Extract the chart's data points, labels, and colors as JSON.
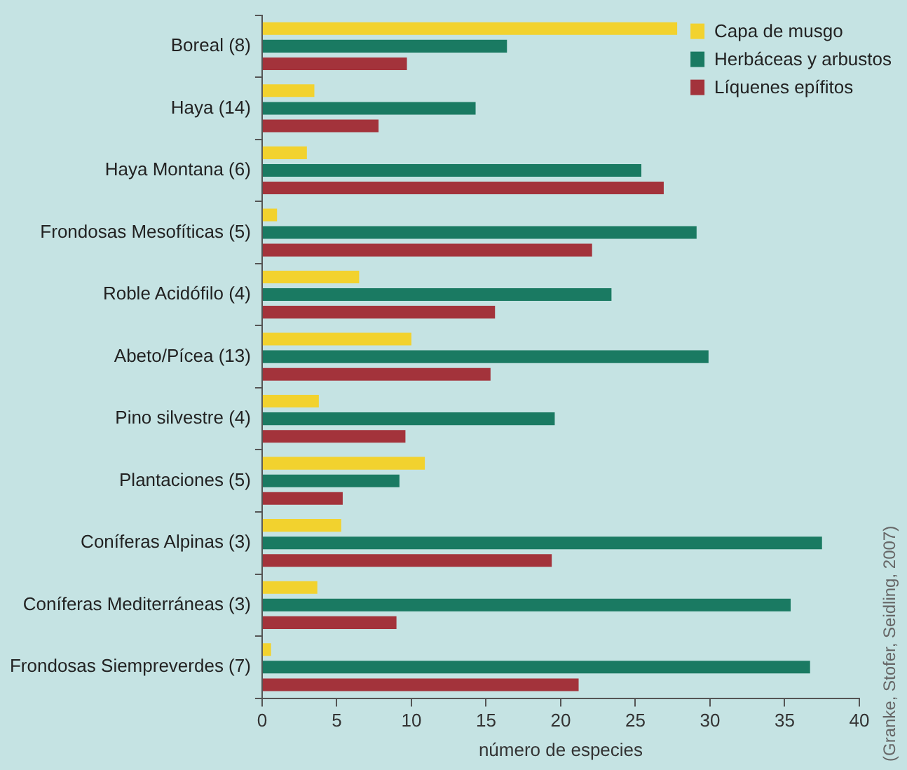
{
  "chart_data": {
    "type": "bar",
    "orientation": "horizontal",
    "xlabel": "número de especies",
    "categories": [
      "Boreal (8)",
      "Haya (14)",
      "Haya Montana (6)",
      "Frondosas Mesofíticas (5)",
      "Roble Acidófilo (4)",
      "Abeto/Pícea (13)",
      "Pino silvestre (4)",
      "Plantaciones (5)",
      "Coníferas Alpinas (3)",
      "Coníferas Mediterráneas (3)",
      "Frondosas Siempreverdes (7)"
    ],
    "series": [
      {
        "name": "Capa de musgo",
        "color": "#f2d22e",
        "values": [
          27.8,
          3.5,
          3.0,
          1.0,
          6.5,
          10.0,
          3.8,
          10.9,
          5.3,
          3.7,
          0.6
        ]
      },
      {
        "name": "Herbáceas y arbustos",
        "color": "#1a7a62",
        "values": [
          16.4,
          14.3,
          25.4,
          29.1,
          23.4,
          29.9,
          19.6,
          9.2,
          37.5,
          35.4,
          36.7
        ]
      },
      {
        "name": "Líquenes epífitos",
        "color": "#a3333b",
        "values": [
          9.7,
          7.8,
          26.9,
          22.1,
          15.6,
          15.3,
          9.6,
          5.4,
          19.4,
          9.0,
          21.2
        ]
      }
    ],
    "xlim": [
      0,
      40
    ],
    "xticks": [
      0,
      5,
      10,
      15,
      20,
      25,
      30,
      35,
      40
    ],
    "grid": false,
    "legend": "top right",
    "annotations": [
      "(Granke, Stofer, Seidling, 2007)"
    ]
  }
}
